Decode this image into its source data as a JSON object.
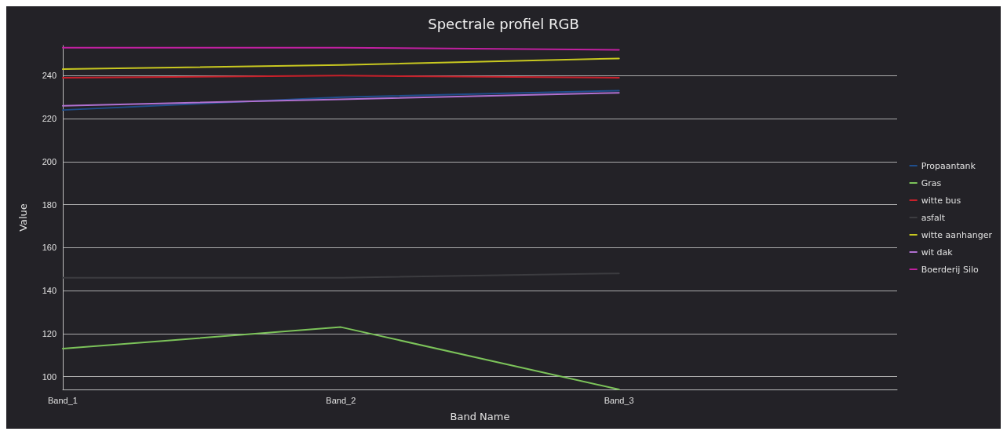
{
  "chart_data": {
    "type": "line",
    "title": "Spectrale profiel RGB",
    "xlabel": "Band Name",
    "ylabel": "Value",
    "categories": [
      "Band_1",
      "Band_2",
      "Band_3"
    ],
    "series": [
      {
        "name": "Propaantank",
        "color": "#1f4e8c",
        "values": [
          224,
          230,
          233
        ]
      },
      {
        "name": "Gras",
        "color": "#7cc35a",
        "values": [
          113,
          123,
          94
        ]
      },
      {
        "name": "witte bus",
        "color": "#c8202a",
        "values": [
          239,
          240,
          239
        ]
      },
      {
        "name": "asfalt",
        "color": "#3c3c40",
        "values": [
          146,
          146,
          148
        ]
      },
      {
        "name": "witte aanhanger",
        "color": "#c8c820",
        "values": [
          243,
          245,
          248
        ]
      },
      {
        "name": "wit dak",
        "color": "#b070d0",
        "values": [
          226,
          229,
          232
        ]
      },
      {
        "name": "Boerderij Silo",
        "color": "#c020a0",
        "values": [
          253,
          253,
          252
        ]
      }
    ],
    "ylim": [
      94,
      254
    ],
    "yticks": [
      100,
      120,
      140,
      160,
      180,
      200,
      220,
      240
    ],
    "grid": "y",
    "legend": "right",
    "marker": "none",
    "line_style": "solid"
  }
}
